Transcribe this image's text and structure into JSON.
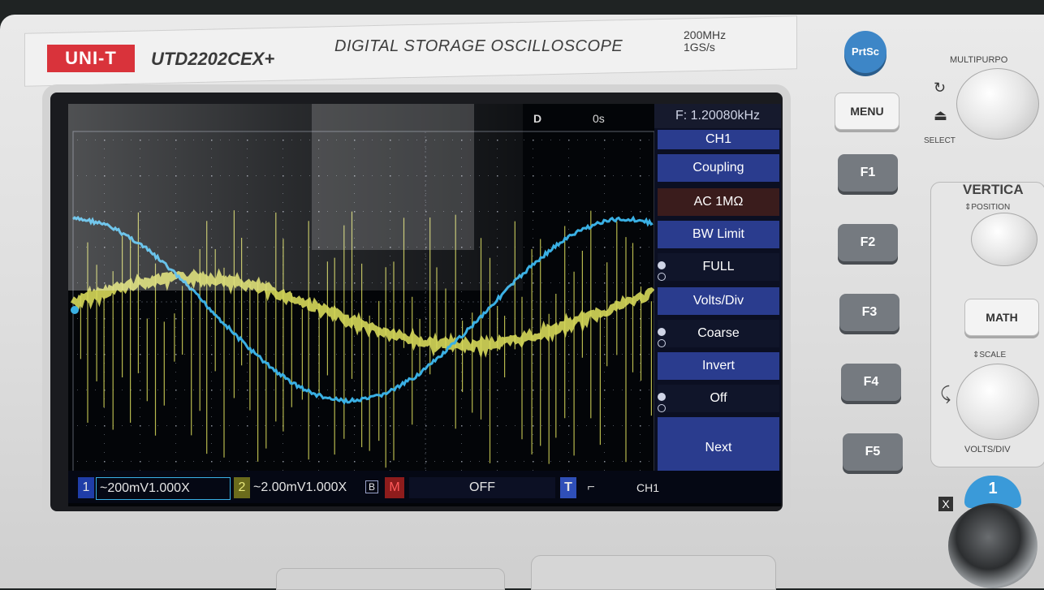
{
  "front_panel": {
    "brand_logo": "UNI-T",
    "model": "UTD2202CEX+",
    "title": "DIGITAL STORAGE OSCILLOSCOPE",
    "spec_bandwidth": "200MHz",
    "spec_sample_rate": "1GS/s"
  },
  "screen": {
    "trigger_marker": "D",
    "time_offset": "0s",
    "frequency_readout": "F: 1.20080kHz",
    "menu": {
      "title": "CH1",
      "items": [
        {
          "label": "Coupling",
          "value": "AC 1MΩ"
        },
        {
          "label": "BW Limit",
          "value": "FULL"
        },
        {
          "label": "Volts/Div",
          "value": "Coarse"
        },
        {
          "label": "Invert",
          "value": "Off"
        }
      ],
      "next_label": "Next"
    },
    "status_bar": {
      "ch1_index": "1",
      "ch1_setting": "~200mV1.000X",
      "ch2_index": "2",
      "ch2_setting": "~2.00mV1.000X",
      "ch2_bw_flag": "B",
      "math_flag": "M",
      "math_state": "OFF",
      "trigger_flag": "T",
      "trigger_source": "CH1"
    },
    "traces": {
      "ch1_color": "#3ab0e4",
      "ch2_color": "#d6d85a"
    }
  },
  "buttons": {
    "prtsc": "PrtSc",
    "menu": "MENU",
    "f1": "F1",
    "f2": "F2",
    "f3": "F3",
    "f4": "F4",
    "f5": "F5",
    "math": "MATH"
  },
  "right_panel": {
    "multipurpose_label": "MULTIPURPO",
    "select_label": "SELECT",
    "vertical_title": "VERTICA",
    "position_label": "POSITION",
    "scale_label": "SCALE",
    "volts_div_label": "VOLTS/DIV",
    "input_x_label": "X",
    "input_ch1_label": "1"
  }
}
